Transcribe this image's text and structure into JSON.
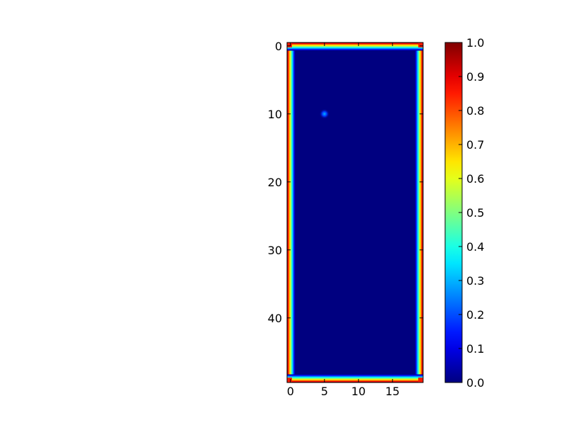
{
  "chart_data": {
    "type": "heatmap",
    "title": "",
    "xlabel": "",
    "ylabel": "",
    "grid": false,
    "image": {
      "rows": 50,
      "cols": 20,
      "x_range": [
        -0.5,
        19.5
      ],
      "y_range": [
        49.5,
        -0.5
      ],
      "origin": "upper",
      "background_value": 0.0,
      "border": {
        "value": 1.0,
        "description": "outermost rows and columns at 1.0, fading to 0 within about one cell"
      },
      "spot": {
        "row": 10,
        "col": 5,
        "peak_value": 0.3
      }
    },
    "x_ticks": [
      0,
      5,
      10,
      15
    ],
    "y_ticks": [
      0,
      10,
      20,
      30,
      40
    ],
    "colorbar": {
      "colormap": "jet",
      "vmin": 0.0,
      "vmax": 1.0,
      "ticks": [
        "0.0",
        "0.1",
        "0.2",
        "0.3",
        "0.4",
        "0.5",
        "0.6",
        "0.7",
        "0.8",
        "0.9",
        "1.0"
      ]
    }
  }
}
